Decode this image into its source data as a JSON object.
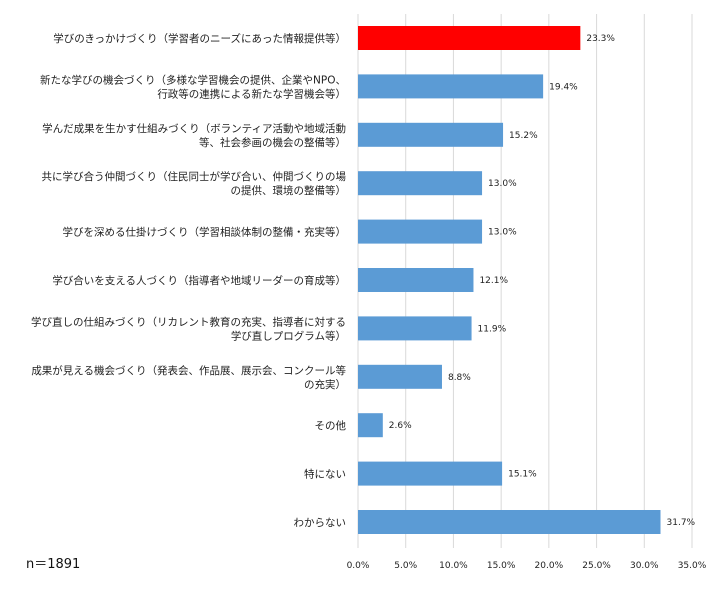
{
  "note": "n＝1891",
  "chart_data": {
    "type": "bar",
    "orientation": "horizontal",
    "title": "",
    "xlabel": "",
    "ylabel": "",
    "xlim": [
      0,
      35
    ],
    "x_ticks": [
      "0.0%",
      "5.0%",
      "10.0%",
      "15.0%",
      "20.0%",
      "25.0%",
      "30.0%",
      "35.0%"
    ],
    "grid": true,
    "colors": {
      "default": "#5B9BD5",
      "highlight": "#FF0000",
      "grid": "#D9D9D9"
    },
    "highlight_index": 0,
    "categories": [
      [
        "学びのきっかけづくり（学習者のニーズにあった情報提供等）"
      ],
      [
        "新たな学びの機会づくり（多様な学習機会の提供、企業やNPO、",
        "行政等の連携による新たな学習機会等）"
      ],
      [
        "学んだ成果を生かす仕組みづくり（ボランティア活動や地域活動",
        "等、社会参画の機会の整備等）"
      ],
      [
        "共に学び合う仲間づくり（住民同士が学び合い、仲間づくりの場",
        "の提供、環境の整備等）"
      ],
      [
        "学びを深める仕掛けづくり（学習相談体制の整備・充実等）"
      ],
      [
        "学び合いを支える人づくり（指導者や地域リーダーの育成等）"
      ],
      [
        "学び直しの仕組みづくり（リカレント教育の充実、指導者に対する",
        "学び直しプログラム等）"
      ],
      [
        "成果が見える機会づくり（発表会、作品展、展示会、コンクール等",
        "の充実）"
      ],
      [
        "その他"
      ],
      [
        "特にない"
      ],
      [
        "わからない"
      ]
    ],
    "values": [
      23.3,
      19.4,
      15.2,
      13.0,
      13.0,
      12.1,
      11.9,
      8.8,
      2.6,
      15.1,
      31.7
    ],
    "value_labels": [
      "23.3%",
      "19.4%",
      "15.2%",
      "13.0%",
      "13.0%",
      "12.1%",
      "11.9%",
      "8.8%",
      "2.6%",
      "15.1%",
      "31.7%"
    ]
  }
}
